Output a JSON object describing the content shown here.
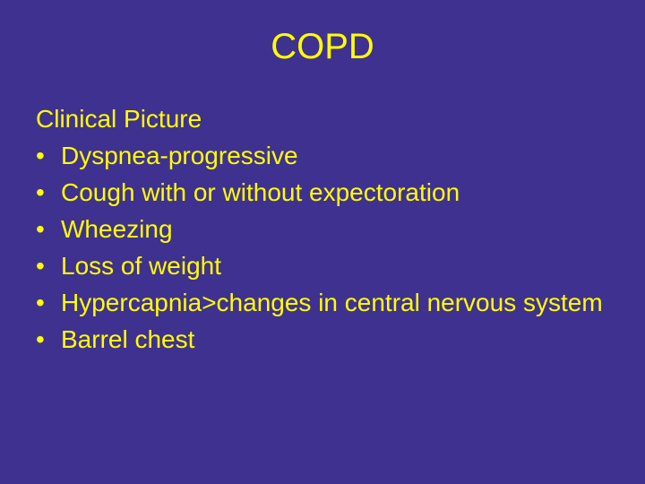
{
  "slide": {
    "background_color": "#3f3190",
    "text_color": "#ffff00",
    "title": "COPD",
    "title_fontsize": 40,
    "subtitle": "Clinical Picture",
    "body_fontsize": 28,
    "line_height": 1.25,
    "bullet_char": "•",
    "bullets": [
      "Dyspnea-progressive",
      "Cough with or without expectoration",
      "Wheezing",
      "Loss of weight",
      "Hypercapnia>changes in central nervous system",
      "Barrel chest"
    ]
  }
}
